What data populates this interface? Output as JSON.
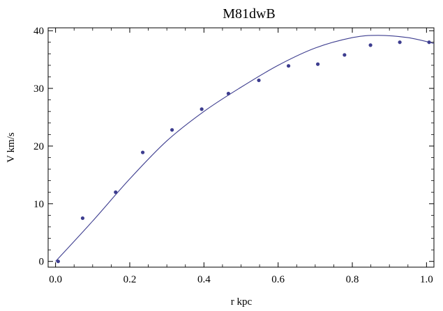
{
  "chart_data": {
    "type": "scatter",
    "title": "M81dwB",
    "xlabel": "r kpc",
    "ylabel": "V km/s",
    "xlim": [
      -0.02,
      1.02
    ],
    "ylim": [
      -1,
      40.5
    ],
    "x_ticks": [
      0.0,
      0.2,
      0.4,
      0.6,
      0.8,
      1.0
    ],
    "x_tick_labels": [
      "0.0",
      "0.2",
      "0.4",
      "0.6",
      "0.8",
      "1.0"
    ],
    "y_ticks": [
      0,
      10,
      20,
      30,
      40
    ],
    "y_tick_labels": [
      "0",
      "10",
      "20",
      "30",
      "40"
    ],
    "grid": false,
    "series": [
      {
        "kind": "points",
        "color": "#3d3d8f",
        "points": [
          [
            0.007,
            0.0
          ],
          [
            0.073,
            7.5
          ],
          [
            0.162,
            12.0
          ],
          [
            0.235,
            18.9
          ],
          [
            0.314,
            22.8
          ],
          [
            0.394,
            26.4
          ],
          [
            0.466,
            29.1
          ],
          [
            0.548,
            31.4
          ],
          [
            0.628,
            33.9
          ],
          [
            0.707,
            34.2
          ],
          [
            0.779,
            35.8
          ],
          [
            0.849,
            37.5
          ],
          [
            0.928,
            38.0
          ],
          [
            1.007,
            38.0
          ]
        ]
      },
      {
        "kind": "curve",
        "color": "#3d3d8f",
        "points": [
          [
            0.0,
            0.0
          ],
          [
            0.1,
            7.0
          ],
          [
            0.2,
            14.3
          ],
          [
            0.3,
            20.9
          ],
          [
            0.4,
            26.0
          ],
          [
            0.5,
            30.2
          ],
          [
            0.6,
            34.0
          ],
          [
            0.7,
            37.0
          ],
          [
            0.8,
            38.8
          ],
          [
            0.87,
            39.2
          ],
          [
            0.95,
            38.8
          ],
          [
            1.02,
            37.8
          ]
        ]
      }
    ]
  }
}
